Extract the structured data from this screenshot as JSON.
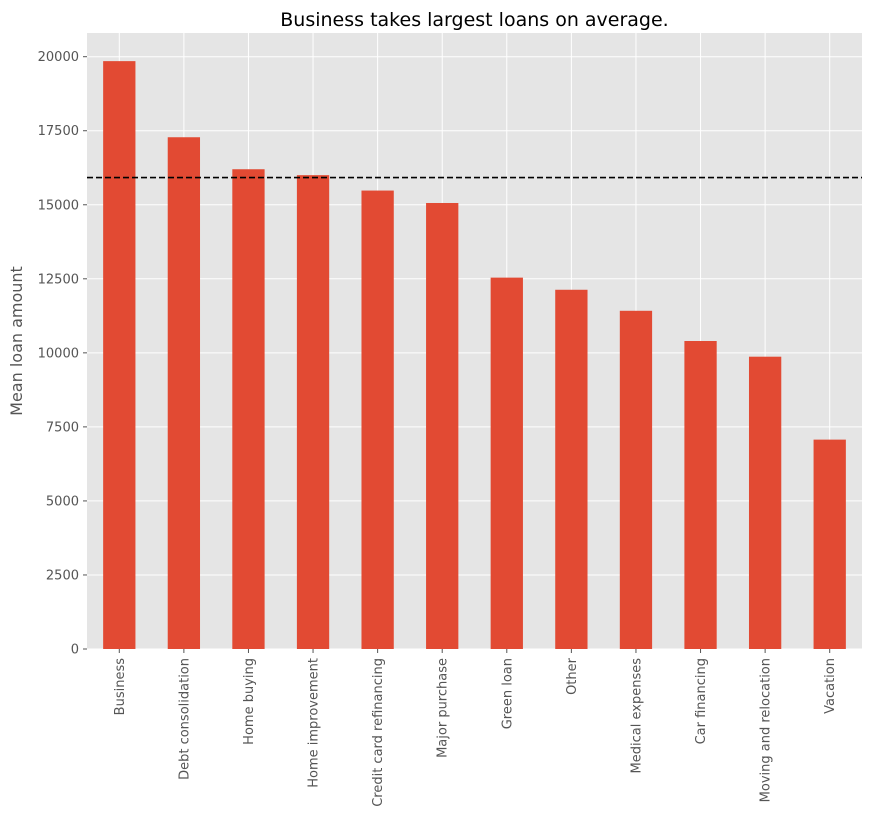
{
  "chart_data": {
    "type": "bar",
    "title": "Business takes largest loans on average.",
    "xlabel": "",
    "ylabel": "Mean loan amount",
    "categories": [
      "Business",
      "Debt consolidation",
      "Home buying",
      "Home improvement",
      "Credit card refinancing",
      "Major purchase",
      "Green loan",
      "Other",
      "Medical expenses",
      "Car financing",
      "Moving and relocation",
      "Vacation"
    ],
    "values": [
      19850,
      17280,
      16200,
      16000,
      15480,
      15060,
      12540,
      12130,
      11420,
      10400,
      9870,
      7070
    ],
    "reference_line": 15920,
    "ylim": [
      0,
      20800
    ],
    "yticks": [
      0,
      2500,
      5000,
      7500,
      10000,
      12500,
      15000,
      17500,
      20000
    ],
    "grid": true,
    "colors": {
      "bar": "#E24A33",
      "background": "#E5E5E5",
      "grid": "#FFFFFF",
      "reference_line": "#000000"
    }
  }
}
